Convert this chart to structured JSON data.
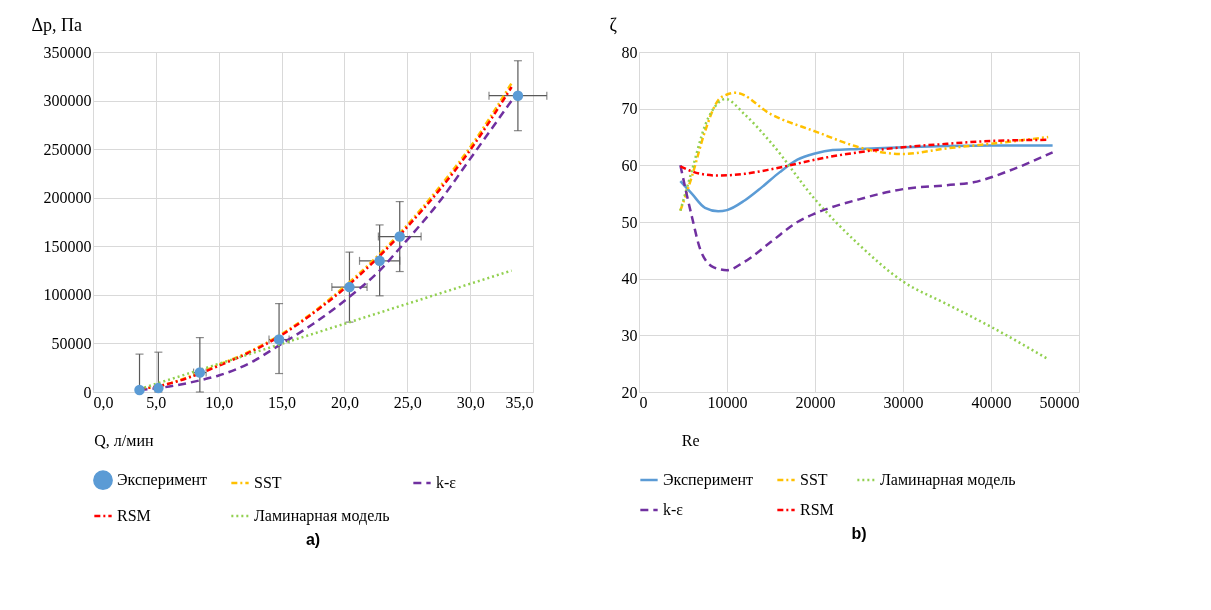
{
  "chart_data": [
    {
      "type": "line",
      "xlabel": "Q, л/мин",
      "ylabel": "Δp, Па",
      "xlim": [
        0,
        35
      ],
      "ylim": [
        0,
        350000
      ],
      "xticks": [
        {
          "value": 0,
          "label": "0,0"
        },
        {
          "value": 5,
          "label": "5,0"
        },
        {
          "value": 10,
          "label": "10,0"
        },
        {
          "value": 15,
          "label": "15,0"
        },
        {
          "value": 20,
          "label": "20,0"
        },
        {
          "value": 25,
          "label": "25,0"
        },
        {
          "value": 30,
          "label": "30,0"
        },
        {
          "value": 35,
          "label": "35,0"
        }
      ],
      "yticks": [
        0,
        50000,
        100000,
        150000,
        200000,
        250000,
        300000,
        350000
      ],
      "grid": true,
      "legend": "bottom",
      "annotations": [
        "a)"
      ],
      "series": [
        {
          "name": "Эксперимент",
          "type": "scatter",
          "marker": "circle",
          "color": "#5b9bd5",
          "x": [
            3.7,
            5.2,
            8.5,
            14.8,
            20.4,
            22.8,
            24.4,
            33.8
          ],
          "values": [
            2000,
            4000,
            20000,
            54000,
            108000,
            135000,
            160000,
            305000
          ],
          "errors": [
            [
              0,
              39000
            ],
            [
              0,
              41000
            ],
            [
              0,
              56000
            ],
            [
              19000,
              91000
            ],
            [
              72000,
              144000
            ],
            [
              99000,
              172000
            ],
            [
              124000,
              196000
            ],
            [
              269000,
              341000
            ]
          ],
          "xerrors": [
            null,
            null,
            0.5,
            0.8,
            1.4,
            1.6,
            1.7,
            2.3
          ]
        },
        {
          "name": "SST",
          "line_style": "dashdot",
          "color": "#ffc000",
          "x": [
            3.7,
            5.2,
            8.5,
            10,
            12.5,
            14.8,
            17.5,
            20.4,
            22.8,
            25,
            27.5,
            30,
            33.3
          ],
          "values": [
            3000,
            6000,
            20000,
            28000,
            42000,
            58000,
            82000,
            113000,
            142000,
            172000,
            210000,
            252000,
            318000
          ]
        },
        {
          "name": "k-ε",
          "line_style": "dashed",
          "color": "#7030a0",
          "x": [
            3.7,
            5.2,
            8.5,
            10,
            12.5,
            14.8,
            17.5,
            20.4,
            22.8,
            24.4,
            27.5,
            30,
            33.3
          ],
          "values": [
            2000,
            4000,
            12000,
            17000,
            30000,
            48000,
            70000,
            98000,
            125000,
            148000,
            195000,
            240000,
            300000
          ]
        },
        {
          "name": "RSM",
          "line_style": "dashdot",
          "color": "#ff0000",
          "x": [
            3.7,
            5.2,
            8.5,
            10,
            12.5,
            14.8,
            17.5,
            20.4,
            22.8,
            25,
            27.5,
            30,
            33.3
          ],
          "values": [
            3000,
            6000,
            19000,
            27000,
            41000,
            57000,
            81000,
            111000,
            140000,
            170000,
            207000,
            249000,
            314000
          ]
        },
        {
          "name": "Ламинарная модель",
          "line_style": "dotted",
          "color": "#92d050",
          "x": [
            3.7,
            33.3
          ],
          "values": [
            3000,
            125000
          ]
        }
      ]
    },
    {
      "type": "line",
      "xlabel": "Re",
      "ylabel": "ζ",
      "xlim": [
        0,
        50000
      ],
      "ylim": [
        20,
        80
      ],
      "xticks": [
        0,
        10000,
        20000,
        30000,
        40000,
        50000
      ],
      "yticks": [
        20,
        30,
        40,
        50,
        60,
        70,
        80
      ],
      "grid": true,
      "legend": "bottom",
      "annotations": [
        "b)"
      ],
      "series": [
        {
          "name": "Эксперимент",
          "line_style": "solid",
          "color": "#5b9bd5",
          "x": [
            4700,
            6000,
            7500,
            9000,
            10000,
            12000,
            14000,
            16000,
            18000,
            20000,
            22000,
            25000,
            30000,
            35000,
            40000,
            47000
          ],
          "values": [
            57.2,
            55,
            52.5,
            51.9,
            52.1,
            53.8,
            56.2,
            58.8,
            61,
            62.1,
            62.7,
            62.9,
            63.2,
            63.4,
            63.5,
            63.5
          ]
        },
        {
          "name": "SST",
          "line_style": "dashdot",
          "color": "#ffc000",
          "x": [
            4700,
            6000,
            7500,
            9000,
            10000,
            11000,
            15000,
            20000,
            25000,
            28000,
            30000,
            35000,
            40000,
            46500
          ],
          "values": [
            52,
            58,
            66,
            71.5,
            72.5,
            72.8,
            69,
            66,
            63.2,
            62.2,
            62,
            63,
            63.8,
            65
          ]
        },
        {
          "name": "Ламинарная модель",
          "line_style": "dotted",
          "color": "#92d050",
          "x": [
            4700,
            6000,
            7500,
            9000,
            9800,
            12000,
            15000,
            20000,
            25000,
            30000,
            35000,
            40000,
            46500
          ],
          "values": [
            52,
            59,
            67,
            71,
            71.7,
            69,
            64,
            54,
            46,
            39.5,
            35.5,
            31.5,
            25.8
          ]
        },
        {
          "name": "k-ε",
          "line_style": "dashed",
          "color": "#7030a0",
          "x": [
            4700,
            6000,
            7000,
            8500,
            10000,
            12000,
            15000,
            18000,
            20000,
            25000,
            30000,
            35000,
            38000,
            42000,
            47000
          ],
          "values": [
            60,
            51,
            45,
            42,
            41.5,
            43,
            46.5,
            50,
            51.5,
            54,
            55.8,
            56.5,
            57,
            59,
            62.3
          ]
        },
        {
          "name": "RSM",
          "line_style": "dashdot",
          "color": "#ff0000",
          "x": [
            4700,
            7000,
            9000,
            12000,
            15000,
            18000,
            20000,
            25000,
            30000,
            35000,
            40000,
            46500
          ],
          "values": [
            59.8,
            58.5,
            58.2,
            58.5,
            59.3,
            60.3,
            61,
            62.3,
            63.2,
            63.8,
            64.3,
            64.5
          ]
        }
      ]
    }
  ]
}
